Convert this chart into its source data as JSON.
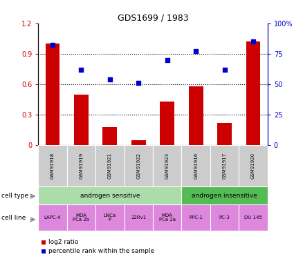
{
  "title": "GDS1699 / 1983",
  "samples": [
    "GSM91918",
    "GSM91919",
    "GSM91921",
    "GSM91922",
    "GSM91923",
    "GSM91916",
    "GSM91917",
    "GSM91920"
  ],
  "log2_ratio": [
    1.0,
    0.5,
    0.18,
    0.05,
    0.43,
    0.58,
    0.22,
    1.02
  ],
  "percentile_rank": [
    82,
    62,
    54,
    51,
    70,
    77,
    62,
    85
  ],
  "bar_color": "#cc0000",
  "dot_color": "#0000cc",
  "ylim_left": [
    0,
    1.2
  ],
  "ylim_right": [
    0,
    100
  ],
  "yticks_left": [
    0,
    0.3,
    0.6,
    0.9,
    1.2
  ],
  "yticks_right": [
    0,
    25,
    50,
    75,
    100
  ],
  "ytick_labels_left": [
    "0",
    "0.3",
    "0.6",
    "0.9",
    "1.2"
  ],
  "ytick_labels_right": [
    "0",
    "25",
    "50",
    "75",
    "100%"
  ],
  "cell_type_groups": [
    {
      "label": "androgen sensitive",
      "start": 0,
      "end": 5,
      "color": "#aaddaa"
    },
    {
      "label": "androgen insensitive",
      "start": 5,
      "end": 8,
      "color": "#55bb55"
    }
  ],
  "cell_lines": [
    "LAPC-4",
    "MDA\nPCa 2b",
    "LNCa\nP",
    "22Rv1",
    "MDA\nPCa 2a",
    "PPC-1",
    "PC-3",
    "DU 145"
  ],
  "cell_line_color": "#dd88dd",
  "sample_bg_color": "#cccccc",
  "legend_log2_label": "log2 ratio",
  "legend_pct_label": "percentile rank within the sample",
  "cell_type_label": "cell type",
  "cell_line_label": "cell line",
  "left_axis_color": "#cc0000",
  "right_axis_color": "#0000cc"
}
